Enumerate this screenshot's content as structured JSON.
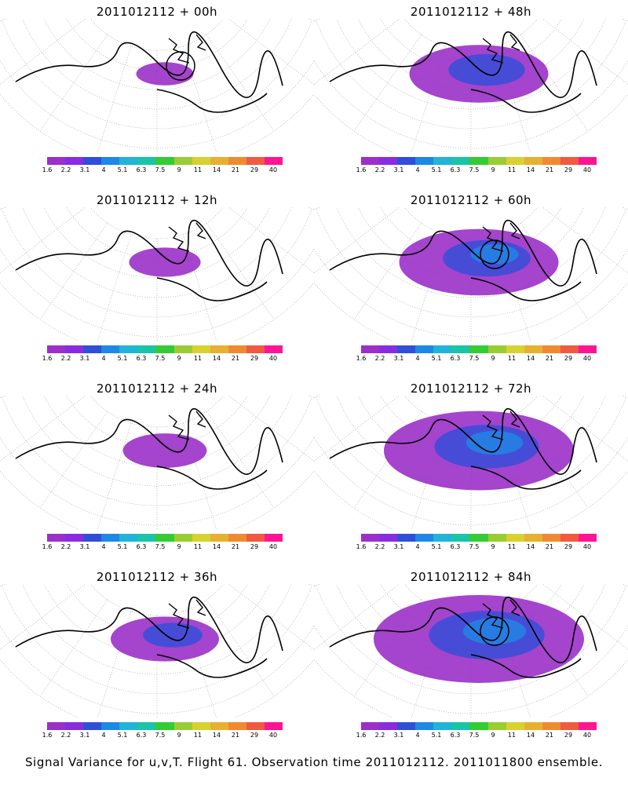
{
  "palette": [
    "#9b30c8",
    "#8a2be2",
    "#2f4fd8",
    "#1e88e5",
    "#1fb4d8",
    "#19c4a8",
    "#33cc33",
    "#9acd32",
    "#d8d230",
    "#e8b030",
    "#f08a30",
    "#f05a40",
    "#ff1493"
  ],
  "colorbar_labels": [
    "1.6",
    "2.2",
    "3.1",
    "4",
    "5.1",
    "6.3",
    "7.5",
    "9",
    "11",
    "14",
    "21",
    "29",
    "40"
  ],
  "panels": [
    {
      "title": "2011012112 + 00h",
      "coverage": 0.05,
      "circle": true
    },
    {
      "title": "2011012112 + 48h",
      "coverage": 0.45,
      "circle": false
    },
    {
      "title": "2011012112 + 12h",
      "coverage": 0.12,
      "circle": false
    },
    {
      "title": "2011012112 + 60h",
      "coverage": 0.55,
      "circle": true
    },
    {
      "title": "2011012112 + 24h",
      "coverage": 0.18,
      "circle": false
    },
    {
      "title": "2011012112 + 72h",
      "coverage": 0.7,
      "circle": false
    },
    {
      "title": "2011012112 + 36h",
      "coverage": 0.3,
      "circle": false
    },
    {
      "title": "2011012112 + 84h",
      "coverage": 0.8,
      "circle": true
    }
  ],
  "caption": "Signal Variance for u,v,T. Flight 61. Observation time 2011012112. 2011011800 ensemble."
}
